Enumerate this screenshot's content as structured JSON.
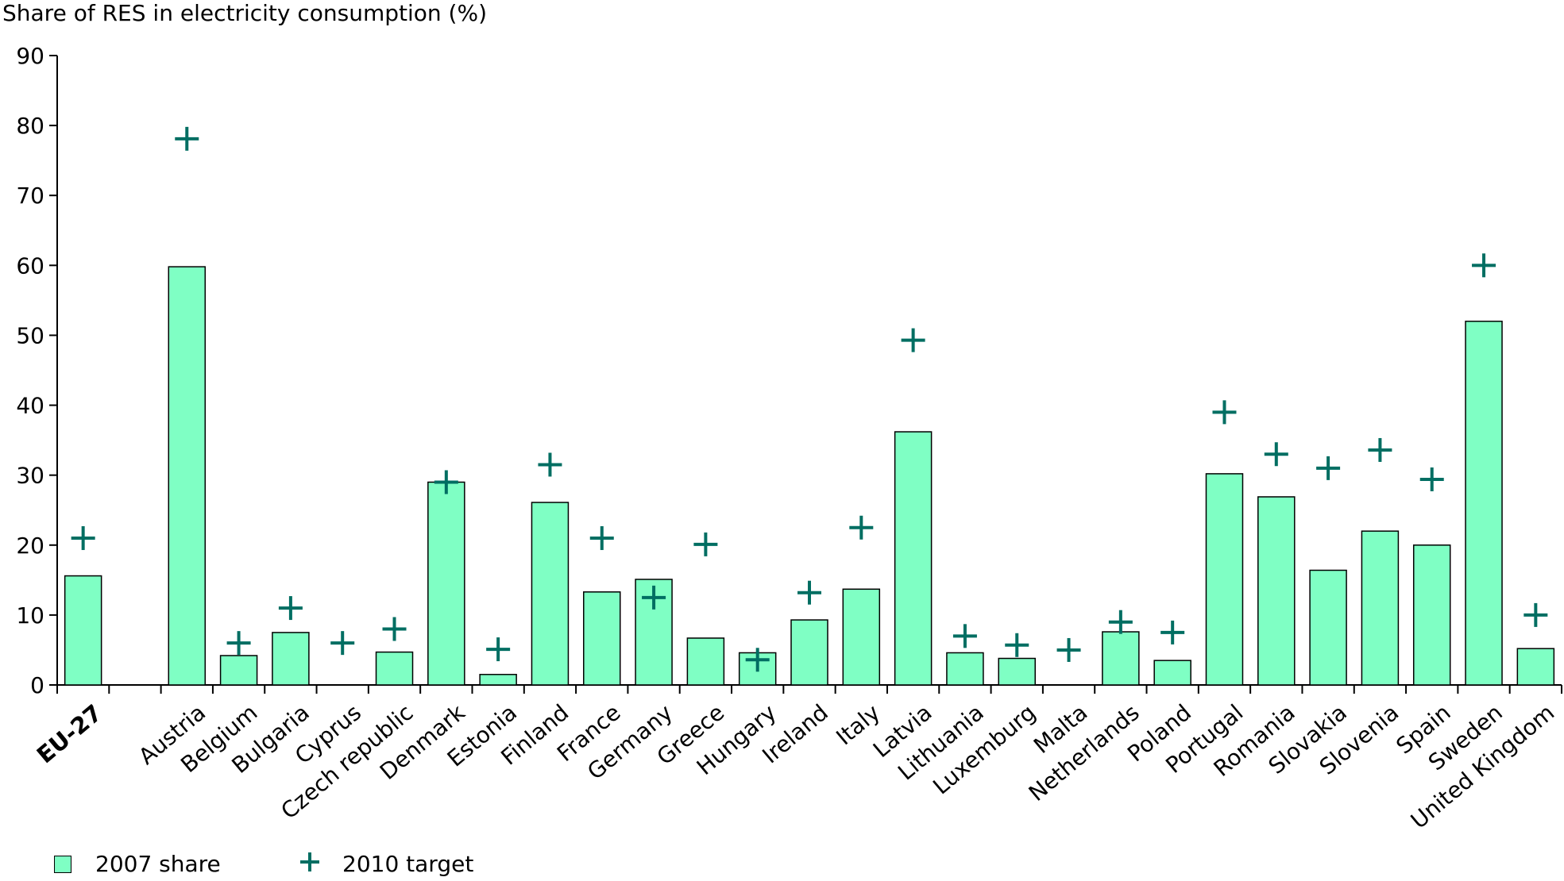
{
  "chart_data": {
    "type": "bar",
    "title": "Share of RES in electricity consumption (%)",
    "xlabel": "",
    "ylabel": "",
    "ylim": [
      0,
      90
    ],
    "yticks": [
      0,
      10,
      20,
      30,
      40,
      50,
      60,
      70,
      80,
      90
    ],
    "grid": false,
    "legend_position": "bottom-left",
    "bold_categories": [
      "EU-27"
    ],
    "categories": [
      "EU-27",
      "",
      "Austria",
      "Belgium",
      "Bulgaria",
      "Cyprus",
      "Czech republic",
      "Denmark",
      "Estonia",
      "Finland",
      "France",
      "Germany",
      "Greece",
      "Hungary",
      "Ireland",
      "Italy",
      "Latvia",
      "Lithuania",
      "Luxemburg",
      "Malta",
      "Netherlands",
      "Poland",
      "Portugal",
      "Romania",
      "Slovakia",
      "Slovenia",
      "Spain",
      "Sweden",
      "United Kingdom"
    ],
    "series": [
      {
        "name": "2007 share",
        "kind": "bar",
        "color": "#7fffc4",
        "values": [
          15.6,
          null,
          59.8,
          4.2,
          7.5,
          0.0,
          4.7,
          29.0,
          1.5,
          26.1,
          13.3,
          15.1,
          6.7,
          4.6,
          9.3,
          13.7,
          36.2,
          4.6,
          3.8,
          0.0,
          7.6,
          3.5,
          30.2,
          26.9,
          16.4,
          22.0,
          20.0,
          52.0,
          5.2
        ]
      },
      {
        "name": "2010 target",
        "kind": "marker",
        "marker": "plus",
        "color": "#006e62",
        "values": [
          21.0,
          null,
          78.1,
          6.0,
          11.0,
          6.0,
          8.0,
          29.0,
          5.1,
          31.5,
          21.0,
          12.5,
          20.1,
          3.6,
          13.2,
          22.5,
          49.3,
          7.0,
          5.7,
          5.0,
          9.0,
          7.5,
          39.0,
          33.0,
          31.0,
          33.6,
          29.4,
          60.0,
          10.0
        ]
      }
    ]
  }
}
